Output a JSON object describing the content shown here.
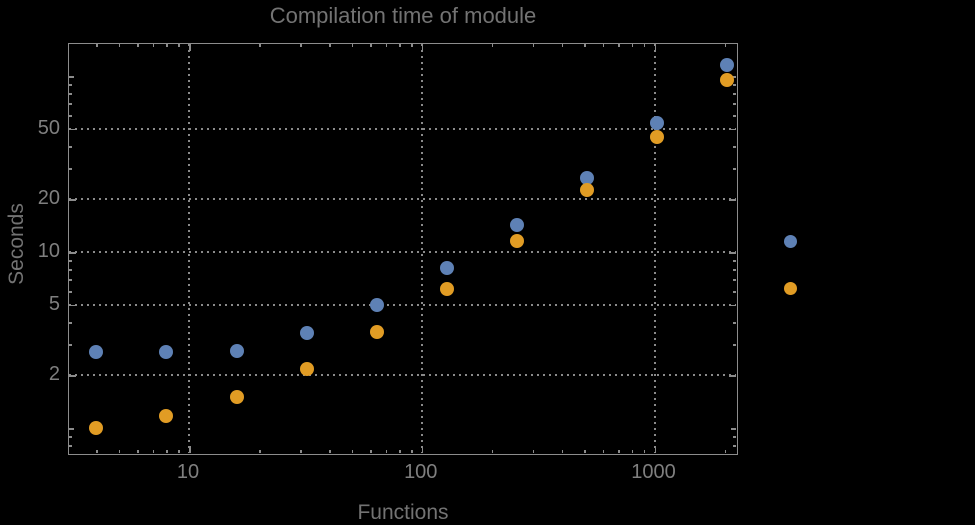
{
  "title": "Compilation time of module",
  "axes": {
    "x_label": "Functions",
    "y_label": "Seconds"
  },
  "colors": {
    "background": "#000000",
    "frame": "#8c8c8c",
    "grid": "#8a8a8a",
    "tick_text": "#7f7f7f",
    "title_text": "#737373",
    "series_blue": "#5e81b5",
    "series_orange": "#e19c24"
  },
  "chart_data": {
    "type": "scatter",
    "title": "Compilation time of module",
    "xlabel": "Functions",
    "ylabel": "Seconds",
    "x_scale": "log",
    "y_scale": "log",
    "xlim": [
      3.05,
      2300
    ],
    "ylim": [
      0.69,
      152
    ],
    "grid": "dotted gray lines at labeled major ticks only",
    "legend_position": "right of plot, colored point markers only (no visible text labels)",
    "x_major_ticks": [
      10,
      100,
      1000
    ],
    "x_tick_labels": [
      "10",
      "100",
      "1000"
    ],
    "x_minor_ticks": [
      4,
      5,
      6,
      7,
      8,
      9,
      20,
      30,
      40,
      50,
      60,
      70,
      80,
      90,
      200,
      300,
      400,
      500,
      600,
      700,
      800,
      900,
      2000
    ],
    "y_major_ticks": [
      2,
      5,
      10,
      20,
      50
    ],
    "y_tick_labels": [
      "2",
      "5",
      "10",
      "20",
      "50"
    ],
    "y_medium_ticks": [
      1,
      100
    ],
    "y_minor_ticks": [
      0.8,
      0.9,
      3,
      4,
      6,
      7,
      8,
      9,
      30,
      40,
      60,
      70,
      80,
      90
    ],
    "x": [
      4,
      8,
      16,
      32,
      64,
      128,
      256,
      512,
      1024,
      2048
    ],
    "series": [
      {
        "name": "blue-series",
        "color": "#5e81b5",
        "values": [
          2.7,
          2.7,
          2.75,
          3.45,
          5.0,
          8.1,
          14.2,
          26.3,
          54,
          115
        ]
      },
      {
        "name": "orange-series",
        "color": "#e19c24",
        "values": [
          1.0,
          1.17,
          1.5,
          2.15,
          3.5,
          6.2,
          11.6,
          22.5,
          45,
          95
        ]
      }
    ]
  }
}
